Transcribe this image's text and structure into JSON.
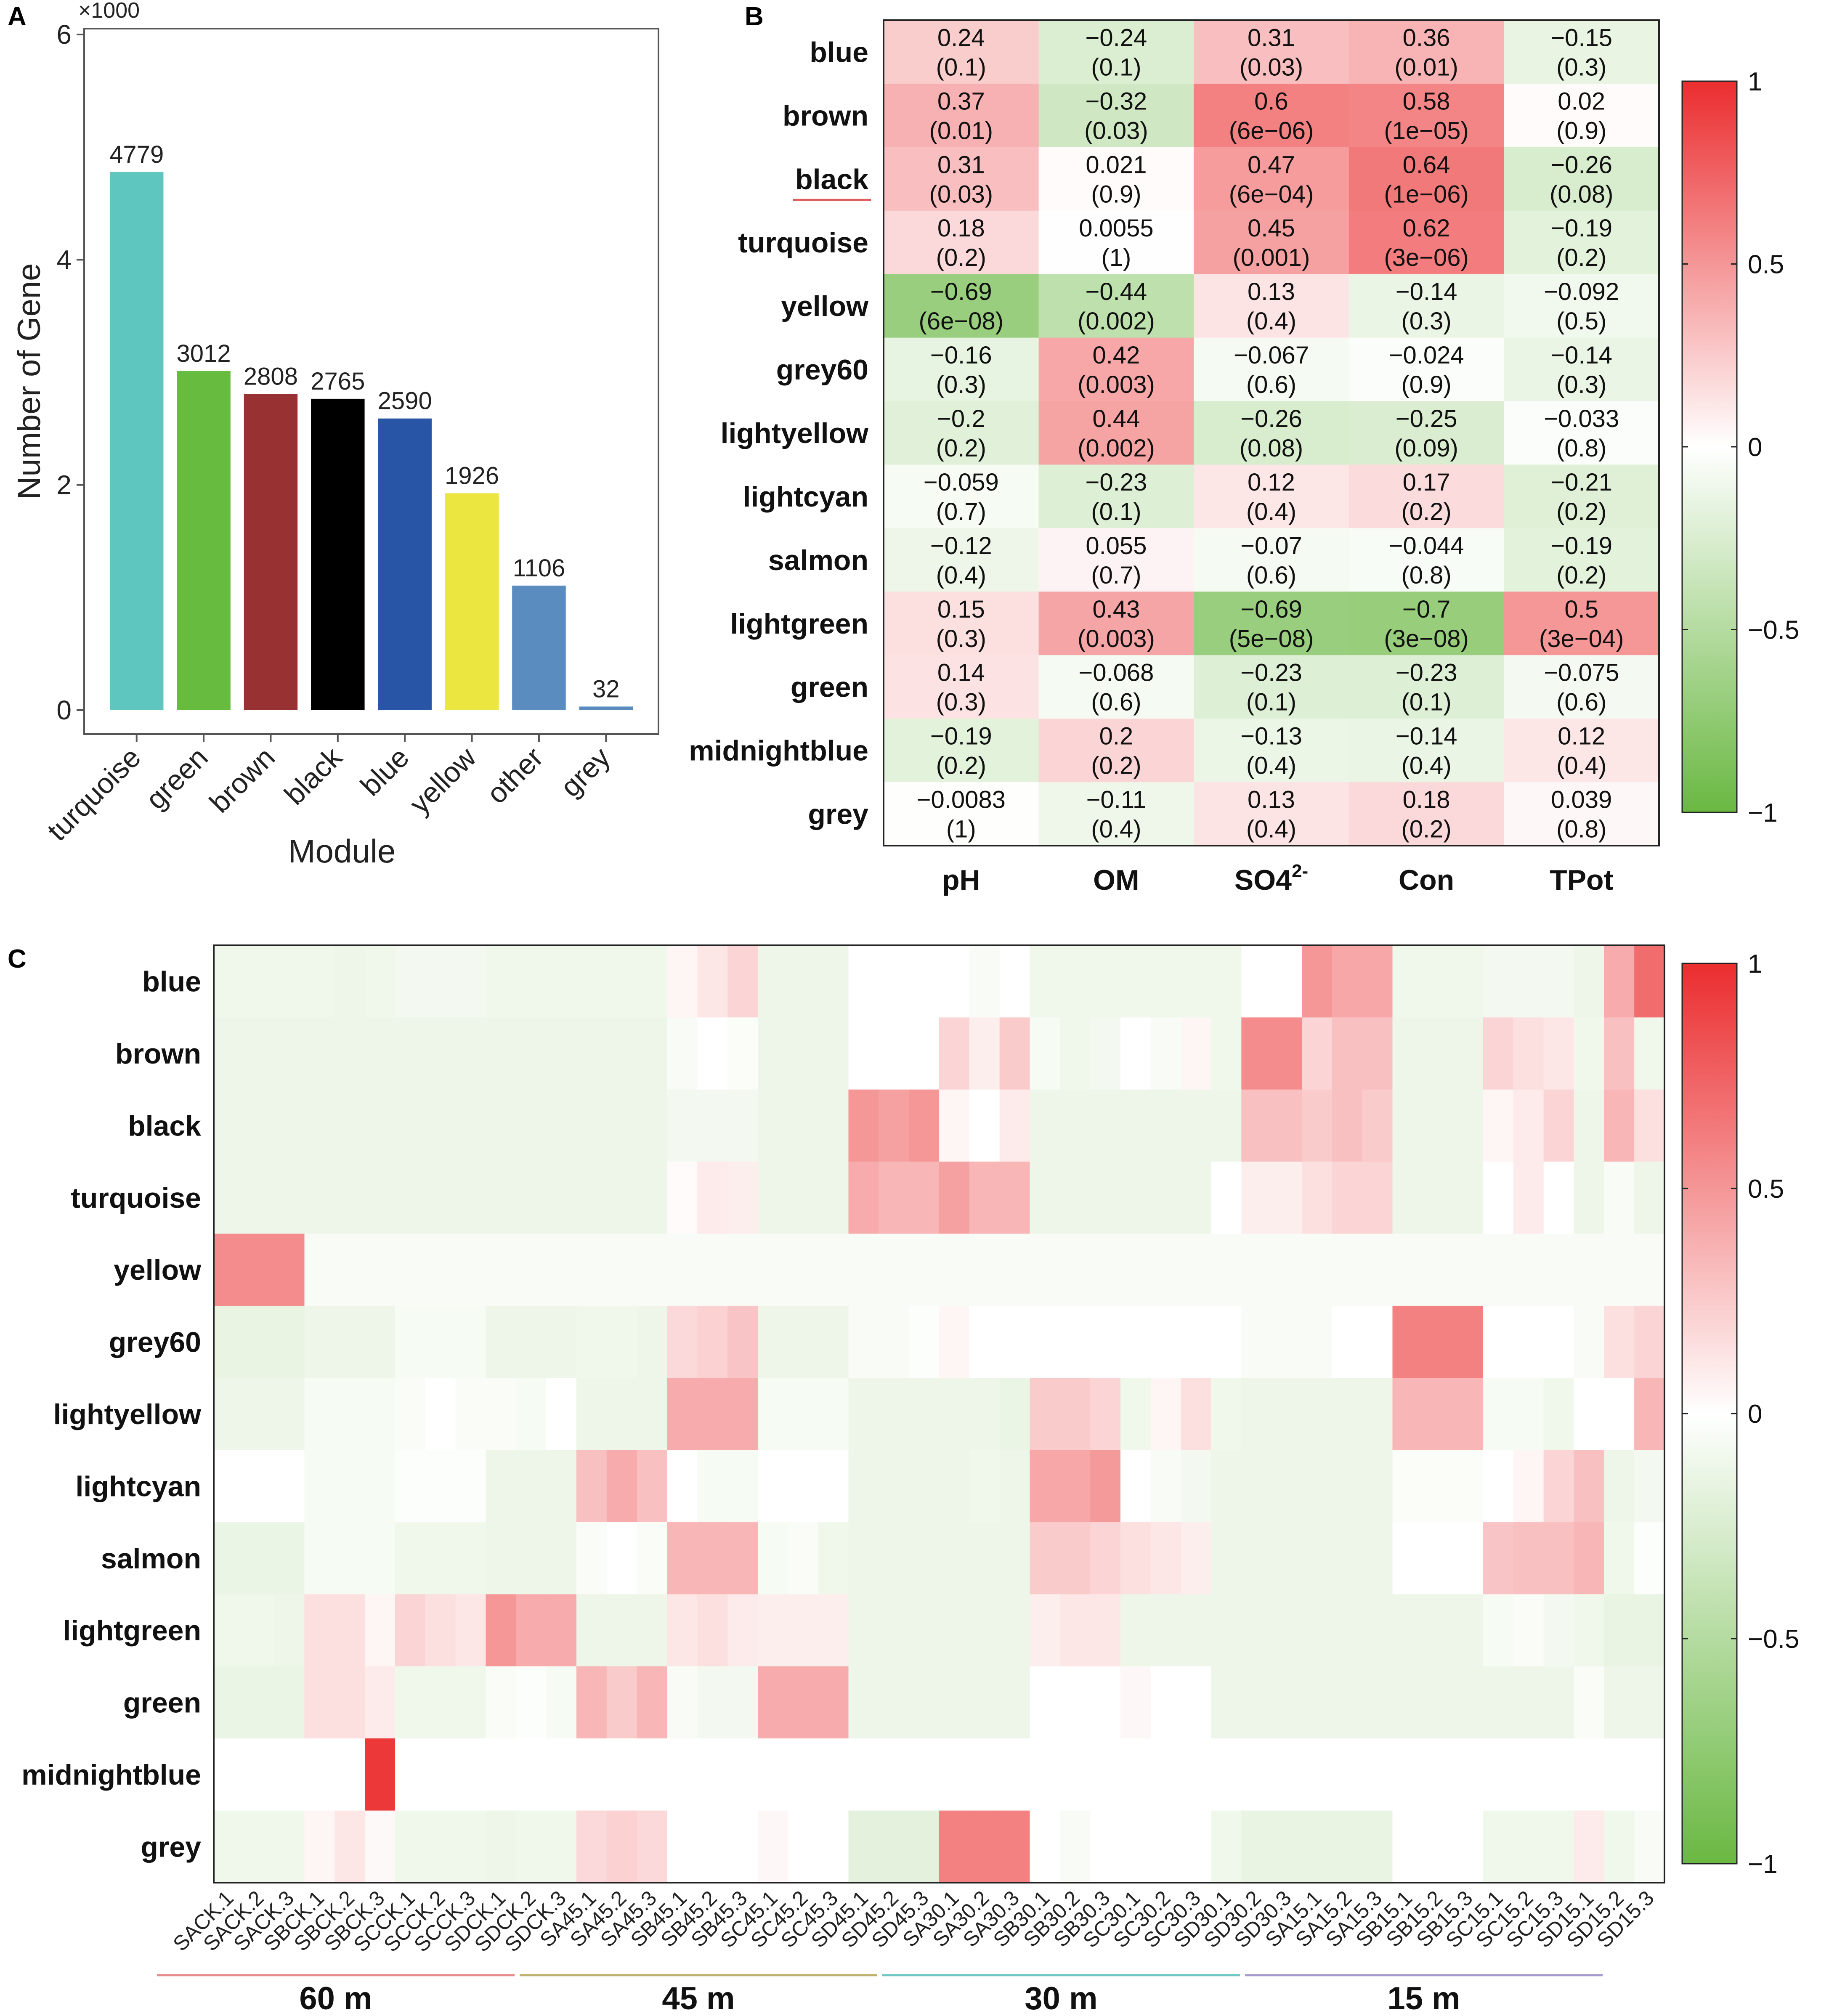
{
  "chart_data": [
    {
      "panel": "A",
      "type": "bar",
      "categories": [
        "turquoise",
        "green",
        "brown",
        "black",
        "blue",
        "yellow",
        "other",
        "grey"
      ],
      "values": [
        4779,
        3012,
        2808,
        2765,
        2590,
        1926,
        1106,
        32
      ],
      "data_labels": [
        "4779",
        "3012",
        "2808",
        "2765",
        "2590",
        "1926",
        "1106",
        "32"
      ],
      "bar_colors": [
        "#5ec6bf",
        "#67bb3e",
        "#983132",
        "#000000",
        "#2855a6",
        "#ece640",
        "#5a8cbf",
        "#5a8cbf"
      ],
      "xlabel": "Module",
      "ylabel": "Number of Gene",
      "ylim": [
        0,
        6000
      ],
      "ytick_values": [
        0,
        2000,
        4000,
        6000
      ],
      "ytick_labels": [
        "0",
        "2",
        "4",
        "6"
      ],
      "y_multiplier": "×1000"
    },
    {
      "panel": "B",
      "type": "heatmap",
      "rows": [
        "blue",
        "brown",
        "black",
        "turquoise",
        "yellow",
        "grey60",
        "lightyellow",
        "lightcyan",
        "salmon",
        "lightgreen",
        "green",
        "midnightblue",
        "grey"
      ],
      "columns": [
        "pH",
        "OM",
        "SO4",
        "Con",
        "TPot"
      ],
      "column_superscripts": [
        "",
        "",
        "2-",
        "",
        ""
      ],
      "values": [
        [
          0.24,
          -0.24,
          0.31,
          0.36,
          -0.15
        ],
        [
          0.37,
          -0.32,
          0.6,
          0.58,
          0.02
        ],
        [
          0.31,
          0.021,
          0.47,
          0.64,
          -0.26
        ],
        [
          0.18,
          0.0055,
          0.45,
          0.62,
          -0.19
        ],
        [
          -0.69,
          -0.44,
          0.13,
          -0.14,
          -0.092
        ],
        [
          -0.16,
          0.42,
          -0.067,
          -0.024,
          -0.14
        ],
        [
          -0.2,
          0.44,
          -0.26,
          -0.25,
          -0.033
        ],
        [
          -0.059,
          -0.23,
          0.12,
          0.17,
          -0.21
        ],
        [
          -0.12,
          0.055,
          -0.07,
          -0.044,
          -0.19
        ],
        [
          0.15,
          0.43,
          -0.69,
          -0.7,
          0.5
        ],
        [
          0.14,
          -0.068,
          -0.23,
          -0.23,
          -0.075
        ],
        [
          -0.19,
          0.2,
          -0.13,
          -0.14,
          0.12
        ],
        [
          -0.0083,
          -0.11,
          0.13,
          0.18,
          0.039
        ]
      ],
      "cell_labels": [
        [
          "0.24",
          "−0.24",
          "0.31",
          "0.36",
          "−0.15"
        ],
        [
          "0.37",
          "−0.32",
          "0.6",
          "0.58",
          "0.02"
        ],
        [
          "0.31",
          "0.021",
          "0.47",
          "0.64",
          "−0.26"
        ],
        [
          "0.18",
          "0.0055",
          "0.45",
          "0.62",
          "−0.19"
        ],
        [
          "−0.69",
          "−0.44",
          "0.13",
          "−0.14",
          "−0.092"
        ],
        [
          "−0.16",
          "0.42",
          "−0.067",
          "−0.024",
          "−0.14"
        ],
        [
          "−0.2",
          "0.44",
          "−0.26",
          "−0.25",
          "−0.033"
        ],
        [
          "−0.059",
          "−0.23",
          "0.12",
          "0.17",
          "−0.21"
        ],
        [
          "−0.12",
          "0.055",
          "−0.07",
          "−0.044",
          "−0.19"
        ],
        [
          "0.15",
          "0.43",
          "−0.69",
          "−0.7",
          "0.5"
        ],
        [
          "0.14",
          "−0.068",
          "−0.23",
          "−0.23",
          "−0.075"
        ],
        [
          "−0.19",
          "0.2",
          "−0.13",
          "−0.14",
          "0.12"
        ],
        [
          "−0.0083",
          "−0.11",
          "0.13",
          "0.18",
          "0.039"
        ]
      ],
      "pvalue_labels": [
        [
          "(0.1)",
          "(0.1)",
          "(0.03)",
          "(0.01)",
          "(0.3)"
        ],
        [
          "(0.01)",
          "(0.03)",
          "(6e−06)",
          "(1e−05)",
          "(0.9)"
        ],
        [
          "(0.03)",
          "(0.9)",
          "(6e−04)",
          "(1e−06)",
          "(0.08)"
        ],
        [
          "(0.2)",
          "(1)",
          "(0.001)",
          "(3e−06)",
          "(0.2)"
        ],
        [
          "(6e−08)",
          "(0.002)",
          "(0.4)",
          "(0.3)",
          "(0.5)"
        ],
        [
          "(0.3)",
          "(0.003)",
          "(0.6)",
          "(0.9)",
          "(0.3)"
        ],
        [
          "(0.2)",
          "(0.002)",
          "(0.08)",
          "(0.09)",
          "(0.8)"
        ],
        [
          "(0.7)",
          "(0.1)",
          "(0.4)",
          "(0.2)",
          "(0.2)"
        ],
        [
          "(0.4)",
          "(0.7)",
          "(0.6)",
          "(0.8)",
          "(0.2)"
        ],
        [
          "(0.3)",
          "(0.003)",
          "(5e−08)",
          "(3e−08)",
          "(3e−04)"
        ],
        [
          "(0.3)",
          "(0.6)",
          "(0.1)",
          "(0.1)",
          "(0.6)"
        ],
        [
          "(0.2)",
          "(0.2)",
          "(0.4)",
          "(0.4)",
          "(0.4)"
        ],
        [
          "(1)",
          "(0.4)",
          "(0.4)",
          "(0.2)",
          "(0.8)"
        ]
      ],
      "highlighted_row": "black",
      "colorbar": {
        "range": [
          -1,
          1
        ],
        "tick_values": [
          1,
          0.5,
          0,
          -0.5,
          -1
        ],
        "tick_labels": [
          "1",
          "0.5",
          "0",
          "−0.5",
          "−1"
        ]
      },
      "colors": {
        "low": "#6ab842",
        "mid": "#ffffff",
        "high": "#eb2d2f"
      }
    },
    {
      "panel": "C",
      "type": "heatmap",
      "rows": [
        "blue",
        "brown",
        "black",
        "turquoise",
        "yellow",
        "grey60",
        "lightyellow",
        "lightcyan",
        "salmon",
        "lightgreen",
        "green",
        "midnightblue",
        "grey"
      ],
      "columns": [
        "SACK.1",
        "SACK.2",
        "SACK.3",
        "SBCK.1",
        "SBCK.2",
        "SBCK.3",
        "SCCK.1",
        "SCCK.2",
        "SCCK.3",
        "SDCK.1",
        "SDCK.2",
        "SDCK.3",
        "SA45.1",
        "SA45.2",
        "SA45.3",
        "SB45.1",
        "SB45.2",
        "SB45.3",
        "SC45.1",
        "SC45.2",
        "SC45.3",
        "SD45.1",
        "SD45.2",
        "SD45.3",
        "SA30.1",
        "SA30.2",
        "SA30.3",
        "SB30.1",
        "SB30.2",
        "SB30.3",
        "SC30.1",
        "SC30.2",
        "SC30.3",
        "SD30.1",
        "SD30.2",
        "SD30.3",
        "SA15.1",
        "SA15.2",
        "SA15.3",
        "SB15.1",
        "SB15.2",
        "SB15.3",
        "SC15.1",
        "SC15.2",
        "SC15.3",
        "SD15.1",
        "SD15.2",
        "SD15.3"
      ],
      "values": [
        [
          -0.1,
          -0.1,
          -0.1,
          -0.1,
          -0.12,
          -0.1,
          -0.08,
          -0.08,
          -0.08,
          -0.1,
          -0.1,
          -0.1,
          -0.1,
          -0.1,
          -0.1,
          0.05,
          0.12,
          0.2,
          -0.12,
          -0.12,
          -0.12,
          0,
          0,
          0,
          0,
          -0.05,
          0,
          -0.1,
          -0.1,
          -0.1,
          -0.1,
          -0.1,
          -0.1,
          -0.1,
          0,
          0,
          0.5,
          0.42,
          0.42,
          -0.1,
          -0.1,
          -0.1,
          -0.08,
          -0.08,
          -0.08,
          -0.12,
          0.4,
          0.7
        ],
        [
          -0.12,
          -0.12,
          -0.12,
          -0.12,
          -0.12,
          -0.12,
          -0.12,
          -0.12,
          -0.12,
          -0.12,
          -0.12,
          -0.12,
          -0.12,
          -0.12,
          -0.12,
          -0.05,
          0,
          -0.03,
          -0.12,
          -0.12,
          -0.12,
          0,
          0,
          0,
          0.2,
          0.08,
          0.25,
          -0.06,
          -0.1,
          -0.08,
          0,
          -0.05,
          0.05,
          -0.1,
          0.55,
          0.55,
          0.2,
          0.3,
          0.3,
          -0.12,
          -0.12,
          -0.12,
          0.2,
          0.15,
          0.12,
          -0.1,
          0.3,
          -0.1
        ],
        [
          -0.12,
          -0.12,
          -0.12,
          -0.12,
          -0.12,
          -0.12,
          -0.12,
          -0.12,
          -0.12,
          -0.12,
          -0.12,
          -0.12,
          -0.12,
          -0.12,
          -0.12,
          -0.08,
          -0.08,
          -0.08,
          -0.12,
          -0.12,
          -0.12,
          0.5,
          0.45,
          0.5,
          0.05,
          0,
          0.1,
          -0.12,
          -0.12,
          -0.12,
          -0.12,
          -0.12,
          -0.12,
          -0.12,
          0.3,
          0.3,
          0.25,
          0.3,
          0.25,
          -0.12,
          -0.12,
          -0.12,
          0.05,
          0.1,
          0.2,
          -0.12,
          0.35,
          0.15
        ],
        [
          -0.12,
          -0.12,
          -0.12,
          -0.12,
          -0.12,
          -0.12,
          -0.12,
          -0.12,
          -0.12,
          -0.12,
          -0.12,
          -0.12,
          -0.12,
          -0.12,
          -0.12,
          0.02,
          0.1,
          0.08,
          -0.12,
          -0.12,
          -0.12,
          0.4,
          0.35,
          0.35,
          0.45,
          0.35,
          0.35,
          -0.12,
          -0.12,
          -0.12,
          -0.12,
          -0.12,
          -0.12,
          0,
          0.08,
          0.08,
          0.15,
          0.2,
          0.2,
          -0.12,
          -0.12,
          -0.12,
          0,
          0.1,
          0,
          -0.12,
          -0.05,
          -0.12
        ],
        [
          0.55,
          0.55,
          0.55,
          -0.05,
          -0.05,
          -0.05,
          -0.05,
          -0.05,
          -0.05,
          -0.05,
          -0.05,
          -0.05,
          -0.05,
          -0.05,
          -0.05,
          -0.05,
          -0.05,
          -0.05,
          -0.05,
          -0.05,
          -0.05,
          -0.05,
          -0.05,
          -0.05,
          -0.05,
          -0.05,
          -0.05,
          -0.05,
          -0.05,
          -0.05,
          -0.05,
          -0.05,
          -0.05,
          -0.05,
          -0.05,
          -0.05,
          -0.05,
          -0.05,
          -0.05,
          -0.05,
          -0.05,
          -0.05,
          -0.05,
          -0.05,
          -0.05,
          -0.05,
          -0.05,
          -0.05
        ],
        [
          -0.15,
          -0.15,
          -0.15,
          -0.12,
          -0.12,
          -0.12,
          -0.06,
          -0.06,
          -0.06,
          -0.12,
          -0.12,
          -0.12,
          -0.1,
          -0.1,
          -0.12,
          0.18,
          0.22,
          0.28,
          -0.12,
          -0.12,
          -0.12,
          -0.05,
          -0.05,
          -0.02,
          0.05,
          0,
          0,
          0,
          0,
          0,
          0,
          0,
          0,
          0,
          -0.05,
          -0.05,
          -0.05,
          0,
          0,
          0.6,
          0.6,
          0.6,
          0,
          0,
          0,
          -0.05,
          0.15,
          0.2
        ],
        [
          -0.12,
          -0.12,
          -0.12,
          -0.06,
          -0.06,
          -0.06,
          -0.04,
          0,
          -0.04,
          -0.04,
          -0.06,
          0,
          -0.12,
          -0.12,
          -0.12,
          0.4,
          0.4,
          0.4,
          -0.06,
          -0.06,
          -0.06,
          -0.12,
          -0.12,
          -0.12,
          -0.12,
          -0.12,
          -0.14,
          0.25,
          0.25,
          0.2,
          -0.1,
          0.05,
          0.15,
          -0.1,
          -0.12,
          -0.12,
          -0.12,
          -0.12,
          -0.12,
          0.35,
          0.35,
          0.35,
          -0.06,
          -0.06,
          -0.1,
          0,
          0,
          0.35
        ],
        [
          0,
          0,
          0,
          -0.06,
          -0.06,
          -0.06,
          -0.02,
          -0.02,
          -0.02,
          -0.12,
          -0.12,
          -0.12,
          0.3,
          0.4,
          0.3,
          0,
          -0.06,
          -0.06,
          0,
          0,
          0,
          -0.12,
          -0.12,
          -0.12,
          -0.12,
          -0.1,
          -0.12,
          0.42,
          0.42,
          0.48,
          0,
          -0.05,
          -0.08,
          -0.12,
          -0.12,
          -0.12,
          -0.12,
          -0.12,
          -0.12,
          -0.03,
          -0.03,
          -0.03,
          0,
          0.05,
          0.2,
          0.3,
          -0.12,
          -0.08
        ],
        [
          -0.14,
          -0.14,
          -0.14,
          -0.06,
          -0.06,
          -0.06,
          -0.1,
          -0.1,
          -0.1,
          -0.12,
          -0.12,
          -0.12,
          -0.04,
          0,
          -0.04,
          0.35,
          0.35,
          0.35,
          -0.06,
          -0.04,
          -0.1,
          -0.12,
          -0.12,
          -0.12,
          -0.12,
          -0.12,
          -0.12,
          0.25,
          0.25,
          0.2,
          0.15,
          0.12,
          0.08,
          -0.12,
          -0.12,
          -0.12,
          -0.12,
          -0.12,
          -0.12,
          0,
          0,
          0,
          0.28,
          0.3,
          0.3,
          0.35,
          -0.1,
          -0.02
        ],
        [
          -0.1,
          -0.1,
          -0.12,
          0.15,
          0.15,
          0.05,
          0.2,
          0.15,
          0.12,
          0.5,
          0.4,
          0.4,
          -0.12,
          -0.12,
          -0.12,
          0.12,
          0.15,
          0.1,
          0.08,
          0.08,
          0.08,
          -0.12,
          -0.12,
          -0.12,
          -0.12,
          -0.12,
          -0.12,
          0.08,
          0.12,
          0.12,
          -0.12,
          -0.12,
          -0.12,
          -0.12,
          -0.12,
          -0.12,
          -0.12,
          -0.12,
          -0.12,
          -0.12,
          -0.12,
          -0.12,
          -0.06,
          -0.04,
          -0.08,
          -0.1,
          -0.15,
          -0.15
        ],
        [
          -0.14,
          -0.14,
          -0.14,
          0.15,
          0.15,
          0.1,
          -0.1,
          -0.1,
          -0.1,
          -0.04,
          -0.02,
          -0.06,
          0.35,
          0.25,
          0.35,
          -0.05,
          -0.08,
          -0.08,
          0.4,
          0.4,
          0.4,
          -0.12,
          -0.12,
          -0.12,
          -0.12,
          -0.12,
          -0.12,
          0,
          0,
          0,
          0.04,
          0,
          0,
          -0.12,
          -0.12,
          -0.12,
          -0.12,
          -0.12,
          -0.12,
          -0.12,
          -0.12,
          -0.12,
          -0.12,
          -0.12,
          -0.12,
          -0.04,
          -0.12,
          -0.12
        ],
        [
          0,
          0,
          0,
          0,
          0,
          0.95,
          0,
          0,
          0,
          0,
          0,
          0,
          0,
          0,
          0,
          0,
          0,
          0,
          0,
          0,
          0,
          0,
          0,
          0,
          0,
          0,
          0,
          0,
          0,
          0,
          0,
          0,
          0,
          0,
          0,
          0,
          0,
          0,
          0,
          0,
          0,
          0,
          0,
          0,
          0,
          0,
          0,
          0
        ],
        [
          -0.1,
          -0.1,
          -0.1,
          0.05,
          0.12,
          0.03,
          -0.1,
          -0.1,
          -0.1,
          -0.12,
          -0.1,
          -0.1,
          0.18,
          0.22,
          0.18,
          0,
          0,
          0,
          0.04,
          0,
          0,
          -0.18,
          -0.18,
          -0.18,
          0.6,
          0.6,
          0.6,
          0,
          -0.05,
          0,
          0,
          0,
          0,
          -0.1,
          -0.15,
          -0.15,
          -0.15,
          -0.15,
          -0.15,
          0,
          0,
          0,
          -0.1,
          -0.1,
          -0.1,
          0.1,
          -0.1,
          -0.05
        ]
      ],
      "groups": [
        {
          "label": "60 m",
          "color": "#e88a8a"
        },
        {
          "label": "45 m",
          "color": "#bdb06a"
        },
        {
          "label": "30 m",
          "color": "#6fc6c3"
        },
        {
          "label": "15 m",
          "color": "#a79ad0"
        }
      ],
      "colorbar": {
        "range": [
          -1,
          1
        ],
        "tick_values": [
          1,
          0.5,
          0,
          -0.5,
          -1
        ],
        "tick_labels": [
          "1",
          "0.5",
          "0",
          "−0.5",
          "−1"
        ]
      },
      "colors": {
        "low": "#6ab842",
        "mid": "#ffffff",
        "high": "#eb2d2f"
      }
    }
  ],
  "panel_labels": {
    "a": "A",
    "b": "B",
    "c": "C"
  }
}
